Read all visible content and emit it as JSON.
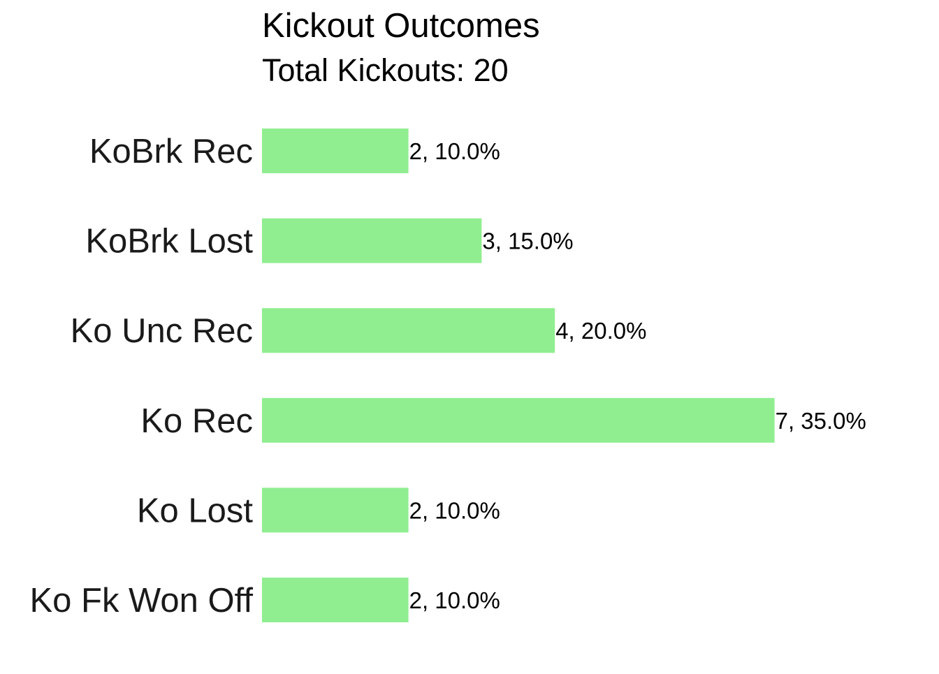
{
  "chart_data": {
    "type": "bar",
    "orientation": "horizontal",
    "title": "Kickout Outcomes",
    "subtitle": "Total Kickouts: 20",
    "categories": [
      "KoBrk Rec",
      "KoBrk Lost",
      "Ko Unc Rec",
      "Ko Rec",
      "Ko Lost",
      "Ko Fk Won Off"
    ],
    "values": [
      2,
      3,
      4,
      7,
      2,
      2
    ],
    "data_labels": [
      "2, 10.0%",
      "3, 15.0%",
      "4, 20.0%",
      "7, 35.0%",
      "2, 10.0%",
      "2, 10.0%"
    ],
    "xlim": [
      0,
      8
    ],
    "grid": false,
    "legend": "none",
    "bar_color": "#90EE90"
  }
}
